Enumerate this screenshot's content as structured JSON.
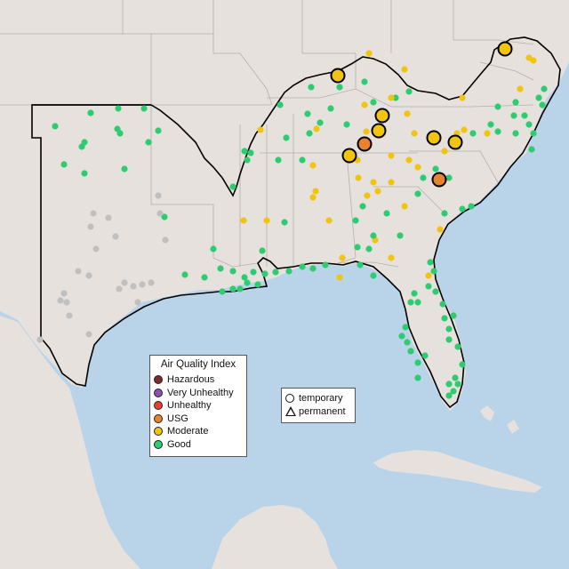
{
  "legend_aqi": {
    "title": "Air Quality Index",
    "items": [
      {
        "label": "Hazardous",
        "color": "#7e2b2b"
      },
      {
        "label": "Very Unhealthy",
        "color": "#8e4fb4"
      },
      {
        "label": "Unhealthy",
        "color": "#e2422f"
      },
      {
        "label": "USG",
        "color": "#e8822c"
      },
      {
        "label": "Moderate",
        "color": "#f1c40f"
      },
      {
        "label": "Good",
        "color": "#2ecc71"
      }
    ]
  },
  "legend_shape": {
    "items": [
      {
        "label": "temporary",
        "shape": "circle"
      },
      {
        "label": "permanent",
        "shape": "triangle"
      }
    ]
  },
  "colors": {
    "water": "#b9d3e8",
    "land": "#e6e1dc",
    "border": "#b7b0aa",
    "highlight_outline": "#000000",
    "no_data": "#c0c0c0"
  }
}
